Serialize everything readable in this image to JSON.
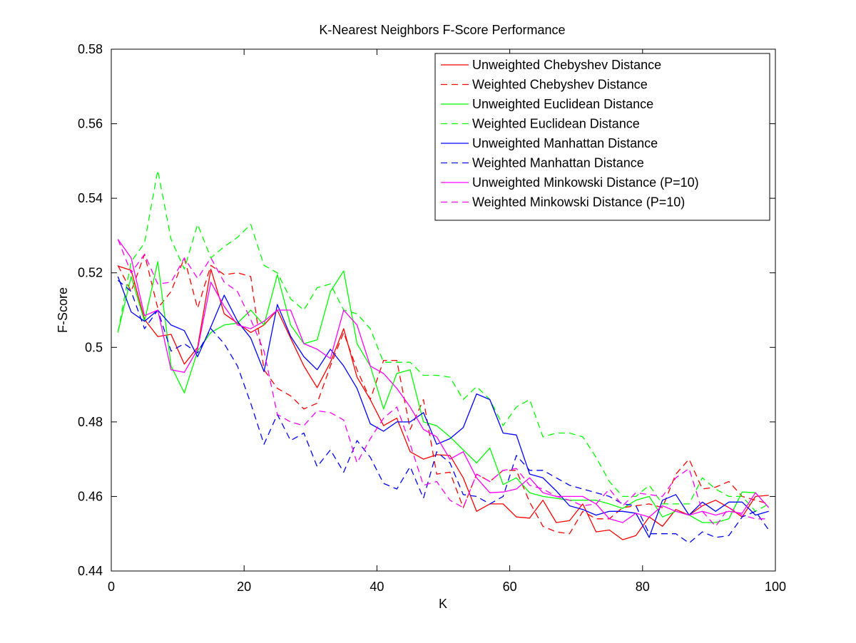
{
  "chart_data": {
    "type": "line",
    "title": "K-Nearest Neighbors F-Score Performance",
    "xlabel": "K",
    "ylabel": "F-Score",
    "xlim": [
      0,
      100
    ],
    "ylim": [
      0.44,
      0.58
    ],
    "xticks": [
      0,
      20,
      40,
      60,
      80,
      100
    ],
    "xtick_labels": [
      "0",
      "20",
      "40",
      "60",
      "80",
      "100"
    ],
    "yticks": [
      0.44,
      0.46,
      0.48,
      0.5,
      0.52,
      0.54,
      0.56,
      0.58
    ],
    "ytick_labels": [
      "0.44",
      "0.46",
      "0.48",
      "0.5",
      "0.52",
      "0.54",
      "0.56",
      "0.58"
    ],
    "grid": false,
    "legend_position": "top-right",
    "x": [
      1,
      3,
      5,
      7,
      9,
      11,
      13,
      15,
      17,
      19,
      21,
      23,
      25,
      27,
      29,
      31,
      33,
      35,
      37,
      39,
      41,
      43,
      45,
      47,
      49,
      51,
      53,
      55,
      57,
      59,
      61,
      63,
      65,
      67,
      69,
      71,
      73,
      75,
      77,
      79,
      81,
      83,
      85,
      87,
      89,
      91,
      93,
      95,
      97,
      99
    ],
    "series": [
      {
        "name": "Unweighted Chebyshev Distance",
        "color": "#ff0000",
        "dash": "solid",
        "values": [
          0.5218,
          0.5207,
          0.5075,
          0.5029,
          0.5035,
          0.4955,
          0.5,
          0.521,
          0.509,
          0.5065,
          0.504,
          0.506,
          0.51,
          0.5025,
          0.495,
          0.4892,
          0.496,
          0.505,
          0.492,
          0.486,
          0.479,
          0.481,
          0.472,
          0.47,
          0.4712,
          0.471,
          0.465,
          0.456,
          0.458,
          0.458,
          0.4545,
          0.4542,
          0.459,
          0.453,
          0.4535,
          0.458,
          0.4505,
          0.451,
          0.4484,
          0.4495,
          0.4545,
          0.452,
          0.4565,
          0.455,
          0.4575,
          0.459,
          0.457,
          0.4545,
          0.46,
          0.4603
        ]
      },
      {
        "name": "Weighted Chebyshev Distance",
        "color": "#ff0000",
        "dash": "dashed",
        "values": [
          0.522,
          0.515,
          0.525,
          0.5105,
          0.515,
          0.524,
          0.5105,
          0.522,
          0.5195,
          0.52,
          0.519,
          0.494,
          0.489,
          0.487,
          0.4835,
          0.485,
          0.495,
          0.504,
          0.494,
          0.486,
          0.4965,
          0.4965,
          0.478,
          0.486,
          0.466,
          0.4665,
          0.457,
          0.466,
          0.464,
          0.467,
          0.467,
          0.4585,
          0.452,
          0.4505,
          0.45,
          0.456,
          0.454,
          0.454,
          0.457,
          0.4575,
          0.458,
          0.457,
          0.466,
          0.47,
          0.462,
          0.4625,
          0.464,
          0.46,
          0.459,
          0.458
        ]
      },
      {
        "name": "Unweighted Euclidean Distance",
        "color": "#00ff00",
        "dash": "solid",
        "values": [
          0.504,
          0.519,
          0.507,
          0.523,
          0.495,
          0.4878,
          0.499,
          0.504,
          0.506,
          0.5065,
          0.51,
          0.506,
          0.5195,
          0.506,
          0.501,
          0.502,
          0.515,
          0.5205,
          0.501,
          0.495,
          0.4835,
          0.493,
          0.494,
          0.48,
          0.479,
          0.476,
          0.4725,
          0.469,
          0.473,
          0.4632,
          0.465,
          0.461,
          0.46,
          0.4595,
          0.459,
          0.459,
          0.459,
          0.458,
          0.4568,
          0.459,
          0.46,
          0.4545,
          0.456,
          0.455,
          0.453,
          0.453,
          0.454,
          0.4612,
          0.461,
          0.457
        ]
      },
      {
        "name": "Weighted Euclidean Distance",
        "color": "#00ff00",
        "dash": "dashed",
        "values": [
          0.504,
          0.523,
          0.528,
          0.5475,
          0.529,
          0.521,
          0.533,
          0.524,
          0.527,
          0.5295,
          0.533,
          0.522,
          0.52,
          0.513,
          0.51,
          0.516,
          0.517,
          0.51,
          0.509,
          0.505,
          0.496,
          0.496,
          0.496,
          0.4925,
          0.4925,
          0.492,
          0.486,
          0.4895,
          0.486,
          0.479,
          0.484,
          0.486,
          0.476,
          0.477,
          0.477,
          0.476,
          0.4705,
          0.464,
          0.46,
          0.46,
          0.463,
          0.458,
          0.458,
          0.458,
          0.465,
          0.462,
          0.46,
          0.46,
          0.456,
          0.458
        ]
      },
      {
        "name": "Unweighted Manhattan Distance",
        "color": "#0000ff",
        "dash": "solid",
        "values": [
          0.519,
          0.5095,
          0.507,
          0.51,
          0.506,
          0.5045,
          0.4975,
          0.5055,
          0.514,
          0.507,
          0.5025,
          0.4935,
          0.5115,
          0.503,
          0.4975,
          0.494,
          0.4995,
          0.495,
          0.489,
          0.4795,
          0.4775,
          0.48,
          0.48,
          0.4825,
          0.474,
          0.4755,
          0.4785,
          0.4875,
          0.486,
          0.477,
          0.4765,
          0.466,
          0.465,
          0.4615,
          0.4575,
          0.4565,
          0.455,
          0.456,
          0.456,
          0.4555,
          0.449,
          0.459,
          0.4605,
          0.455,
          0.4585,
          0.456,
          0.4585,
          0.4585,
          0.455,
          0.456
        ]
      },
      {
        "name": "Weighted Manhattan Distance",
        "color": "#0000ff",
        "dash": "dashed",
        "values": [
          0.518,
          0.515,
          0.505,
          0.51,
          0.499,
          0.501,
          0.4985,
          0.505,
          0.501,
          0.495,
          0.485,
          0.474,
          0.482,
          0.475,
          0.477,
          0.468,
          0.4725,
          0.4665,
          0.475,
          0.4705,
          0.4635,
          0.462,
          0.468,
          0.4595,
          0.472,
          0.469,
          0.4605,
          0.46,
          0.458,
          0.46,
          0.471,
          0.467,
          0.467,
          0.465,
          0.463,
          0.462,
          0.461,
          0.46,
          0.458,
          0.4575,
          0.45,
          0.45,
          0.45,
          0.4475,
          0.4505,
          0.449,
          0.4495,
          0.4545,
          0.456,
          0.451
        ]
      },
      {
        "name": "Unweighted Minkowski Distance (P=10)",
        "color": "#ff00ff",
        "dash": "solid",
        "values": [
          0.529,
          0.524,
          0.5085,
          0.51,
          0.494,
          0.4933,
          0.4995,
          0.5175,
          0.511,
          0.506,
          0.505,
          0.507,
          0.51,
          0.51,
          0.501,
          0.4995,
          0.497,
          0.51,
          0.506,
          0.495,
          0.493,
          0.489,
          0.484,
          0.478,
          0.476,
          0.47,
          0.472,
          0.465,
          0.461,
          0.4612,
          0.462,
          0.465,
          0.461,
          0.46,
          0.46,
          0.46,
          0.458,
          0.454,
          0.453,
          0.4555,
          0.4545,
          0.4575,
          0.456,
          0.455,
          0.456,
          0.455,
          0.456,
          0.4555,
          0.461,
          0.457
        ]
      },
      {
        "name": "Weighted Minkowski Distance (P=10)",
        "color": "#ff00ff",
        "dash": "dashed",
        "values": [
          0.529,
          0.52,
          0.525,
          0.517,
          0.5175,
          0.524,
          0.5185,
          0.524,
          0.5175,
          0.515,
          0.5075,
          0.499,
          0.482,
          0.48,
          0.479,
          0.483,
          0.4825,
          0.4805,
          0.469,
          0.4755,
          0.481,
          0.484,
          0.474,
          0.463,
          0.464,
          0.459,
          0.457,
          0.466,
          0.464,
          0.467,
          0.4675,
          0.463,
          0.462,
          0.46,
          0.459,
          0.4575,
          0.458,
          0.462,
          0.4575,
          0.461,
          0.4605,
          0.46,
          0.465,
          0.4675,
          0.456,
          0.452,
          0.457,
          0.455,
          0.454,
          0.454
        ]
      }
    ]
  }
}
